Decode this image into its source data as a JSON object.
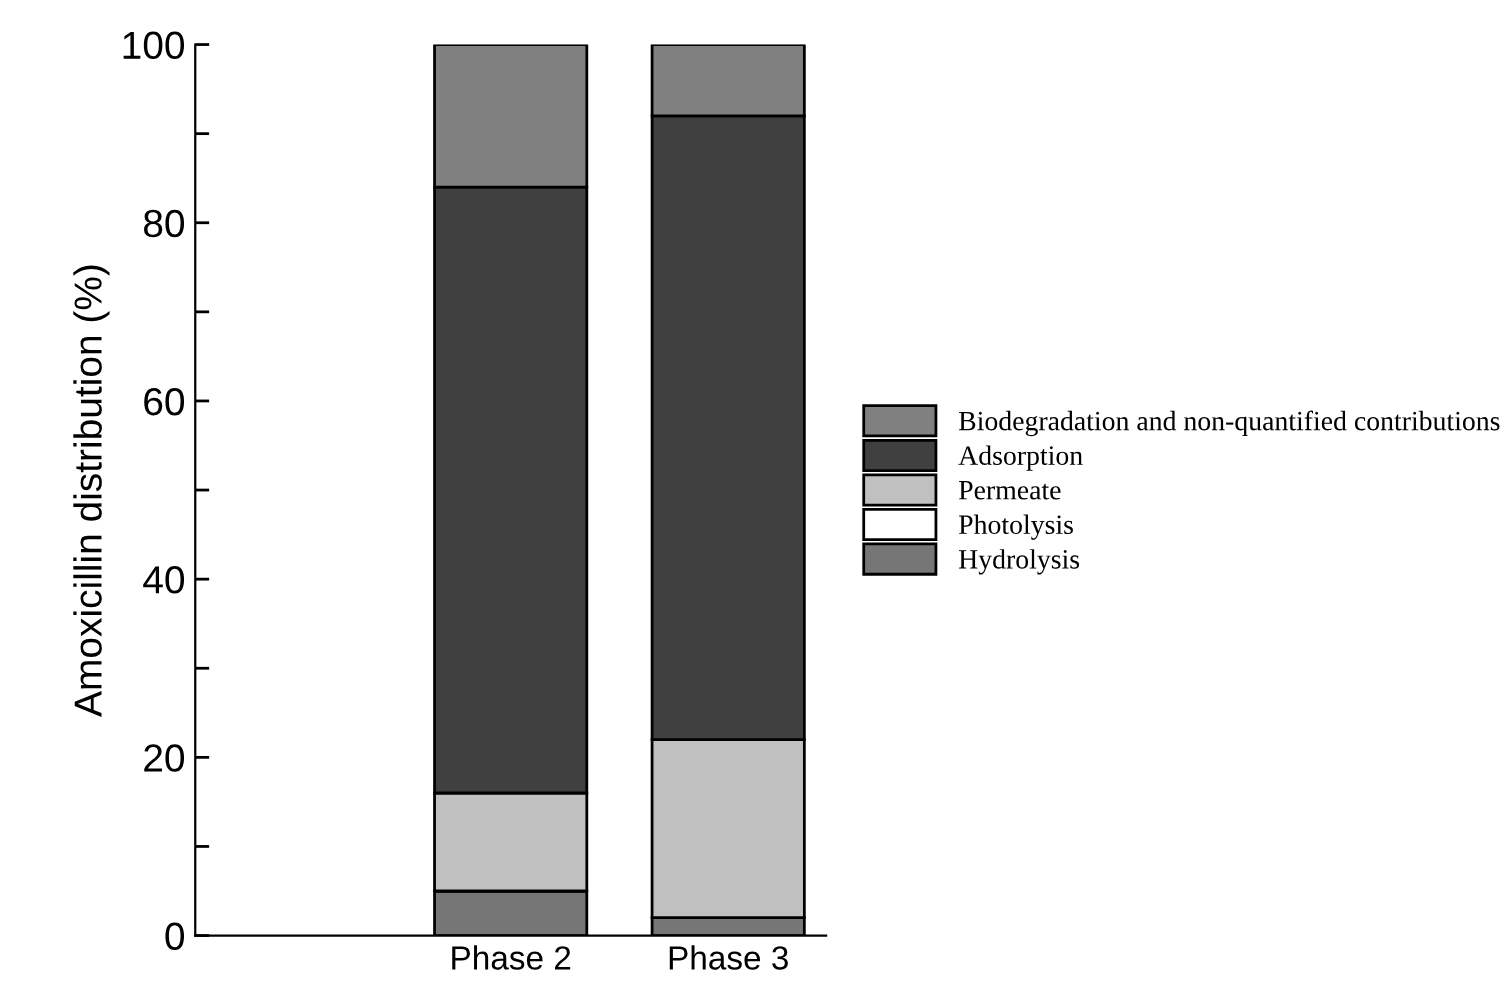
{
  "chart_data": {
    "type": "bar",
    "stacked": true,
    "ylabel": "Amoxicillin distribution (%)",
    "categories": [
      "Phase 2",
      "Phase 3"
    ],
    "series": [
      {
        "name": "Hydrolysis",
        "color": "#767676",
        "values": [
          5,
          2
        ]
      },
      {
        "name": "Photolysis",
        "color": "#ffffff",
        "values": [
          0,
          0
        ]
      },
      {
        "name": "Permeate",
        "color": "#c0c0c0",
        "values": [
          11,
          20
        ]
      },
      {
        "name": "Adsorption",
        "color": "#404040",
        "values": [
          68,
          70
        ]
      },
      {
        "name": "Biodegradation and non-quantified contributions",
        "color": "#808080",
        "values": [
          16,
          8
        ]
      }
    ],
    "ylim": [
      0,
      100
    ],
    "yticks": [
      0,
      20,
      40,
      60,
      80,
      100
    ],
    "legend": "right",
    "grid": false
  }
}
